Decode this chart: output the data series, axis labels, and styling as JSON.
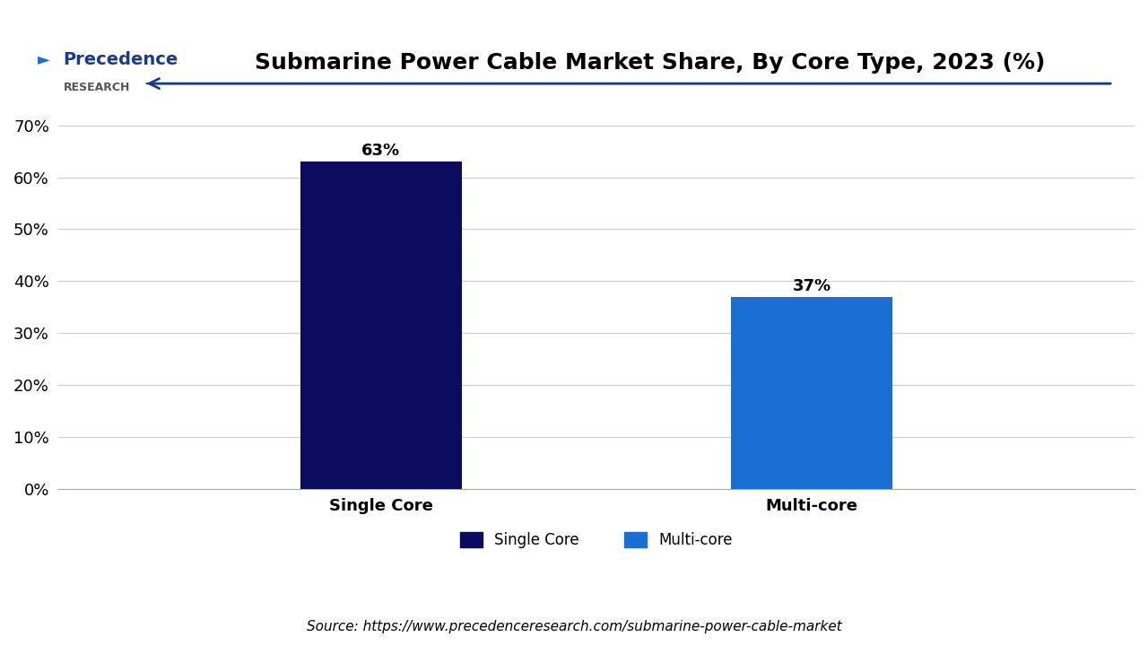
{
  "title": "Submarine Power Cable Market Share, By Core Type, 2023 (%)",
  "categories": [
    "Single Core",
    "Multi-core"
  ],
  "values": [
    63,
    37
  ],
  "bar_colors": [
    "#0a0a5e",
    "#1a6fd4"
  ],
  "bar_labels": [
    "63%",
    "37%"
  ],
  "ylim": [
    0,
    70
  ],
  "yticks": [
    0,
    10,
    20,
    30,
    40,
    50,
    60,
    70
  ],
  "ytick_labels": [
    "0%",
    "10%",
    "20%",
    "30%",
    "40%",
    "50%",
    "60%",
    "70%"
  ],
  "legend_labels": [
    "Single Core",
    "Multi-core"
  ],
  "legend_colors": [
    "#0a0a5e",
    "#1a6fd4"
  ],
  "source_text": "Source: https://www.precedenceresearch.com/submarine-power-cable-market",
  "background_color": "#ffffff",
  "title_fontsize": 18,
  "label_fontsize": 13,
  "tick_fontsize": 13,
  "bar_label_fontsize": 13,
  "legend_fontsize": 12,
  "source_fontsize": 11,
  "arrow_color": "#1a3a8c",
  "logo_text_precedence": "Precedence",
  "logo_text_research": "RESEARCH"
}
